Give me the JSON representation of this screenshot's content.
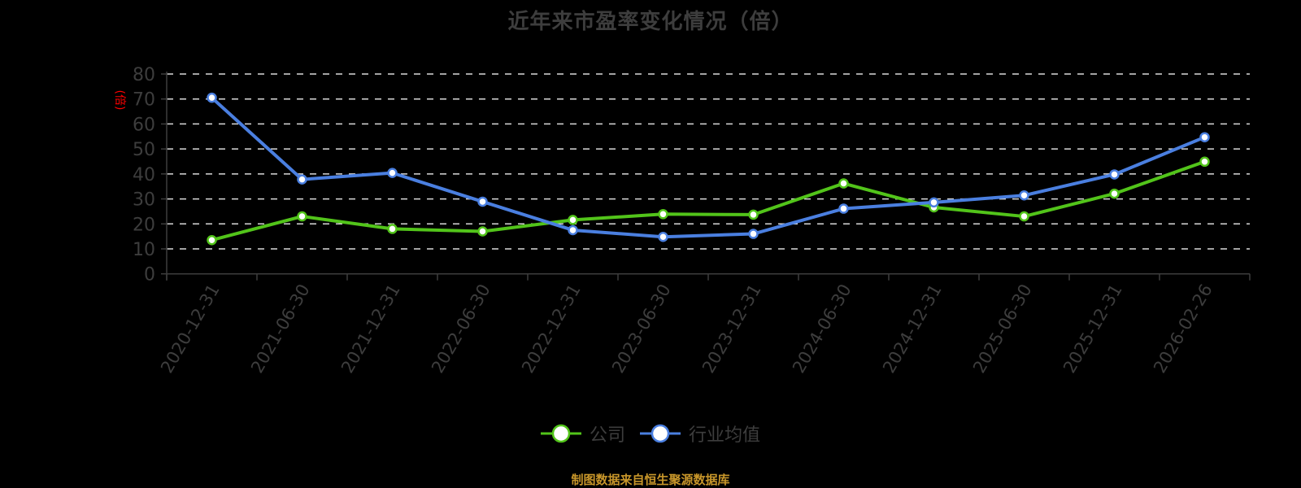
{
  "title": "近年来市盈率变化情况（倍）",
  "footer": "制图数据来自恒生聚源数据库",
  "legend": [
    {
      "label": "公司",
      "color": "#52c41a"
    },
    {
      "label": "行业均值",
      "color": "#4a7fe0"
    }
  ],
  "colors": {
    "background": "#000000",
    "axis": "#3d3d3d",
    "grid": "#d9d9d9",
    "tick_label": "#3d3d3d",
    "ylabel": "#ff0000",
    "company": "#52c41a",
    "industry": "#4a7fe0",
    "footer": "#c8962a"
  },
  "chart_data": {
    "type": "line",
    "title": "近年来市盈率变化情况（倍）",
    "xlabel": "",
    "ylabel": "(倍)",
    "ylim": [
      0,
      80
    ],
    "yticks": [
      0,
      10,
      20,
      30,
      40,
      50,
      60,
      70,
      80
    ],
    "grid": true,
    "legend_position": "bottom",
    "categories": [
      "2020-12-31",
      "2021-06-30",
      "2021-12-31",
      "2022-06-30",
      "2022-12-31",
      "2023-06-30",
      "2023-12-31",
      "2024-06-30",
      "2024-12-31",
      "2025-06-30",
      "2025-12-31",
      "2026-02-26"
    ],
    "series": [
      {
        "name": "公司",
        "color": "#52c41a",
        "values": [
          13.5,
          23.0,
          18.0,
          17.0,
          21.6,
          23.9,
          23.7,
          36.2,
          26.6,
          23.0,
          32.1,
          44.9
        ]
      },
      {
        "name": "行业均值",
        "color": "#4a7fe0",
        "values": [
          70.5,
          37.8,
          40.4,
          28.9,
          17.5,
          14.8,
          16.0,
          26.1,
          28.6,
          31.4,
          39.8,
          54.7
        ]
      }
    ]
  }
}
